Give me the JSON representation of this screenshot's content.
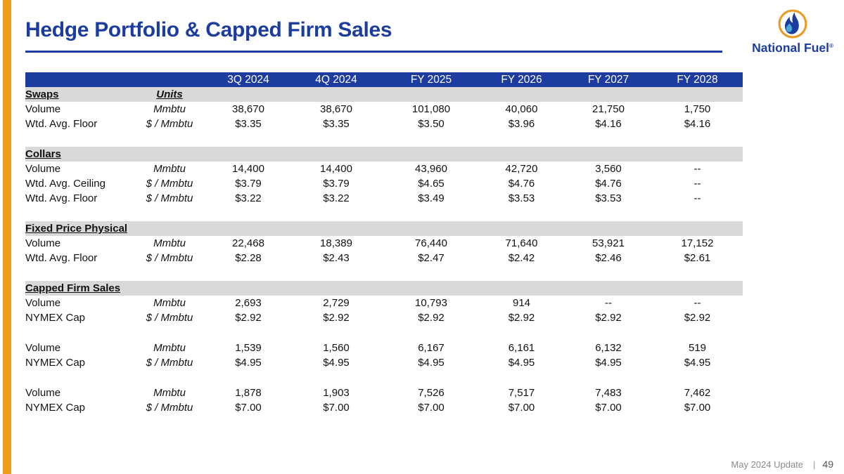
{
  "slide": {
    "title": "Hedge Portfolio & Capped Firm Sales",
    "footer": {
      "update": "May 2024 Update",
      "separator": "|",
      "page": "49"
    },
    "logo": {
      "brand": "National Fuel",
      "registered": "®"
    },
    "colors": {
      "accent_blue": "#1d3ca0",
      "accent_orange": "#ef9e1c",
      "band_gray": "#d9d9d9",
      "muted_text": "#8a8a8a",
      "header_text": "#ffffff"
    }
  },
  "table": {
    "columns": [
      "3Q 2024",
      "4Q 2024",
      "FY 2025",
      "FY 2026",
      "FY 2027",
      "FY 2028"
    ],
    "units_column_header": "Units",
    "sections": [
      {
        "name": "Swaps",
        "groups": [
          [
            {
              "label": "Volume",
              "unit": "Mmbtu",
              "values": [
                "38,670",
                "38,670",
                "101,080",
                "40,060",
                "21,750",
                "1,750"
              ]
            },
            {
              "label": "Wtd. Avg. Floor",
              "unit": "$ / Mmbtu",
              "values": [
                "$3.35",
                "$3.35",
                "$3.50",
                "$3.96",
                "$4.16",
                "$4.16"
              ]
            }
          ]
        ]
      },
      {
        "name": "Collars",
        "groups": [
          [
            {
              "label": "Volume",
              "unit": "Mmbtu",
              "values": [
                "14,400",
                "14,400",
                "43,960",
                "42,720",
                "3,560",
                "--"
              ]
            },
            {
              "label": "Wtd. Avg. Ceiling",
              "unit": "$ / Mmbtu",
              "values": [
                "$3.79",
                "$3.79",
                "$4.65",
                "$4.76",
                "$4.76",
                "--"
              ]
            },
            {
              "label": "Wtd. Avg. Floor",
              "unit": "$ / Mmbtu",
              "values": [
                "$3.22",
                "$3.22",
                "$3.49",
                "$3.53",
                "$3.53",
                "--"
              ]
            }
          ]
        ]
      },
      {
        "name": "Fixed Price Physical",
        "groups": [
          [
            {
              "label": "Volume",
              "unit": "Mmbtu",
              "values": [
                "22,468",
                "18,389",
                "76,440",
                "71,640",
                "53,921",
                "17,152"
              ]
            },
            {
              "label": "Wtd. Avg. Floor",
              "unit": "$ / Mmbtu",
              "values": [
                "$2.28",
                "$2.43",
                "$2.47",
                "$2.42",
                "$2.46",
                "$2.61"
              ]
            }
          ]
        ]
      },
      {
        "name": "Capped Firm Sales",
        "groups": [
          [
            {
              "label": "Volume",
              "unit": "Mmbtu",
              "values": [
                "2,693",
                "2,729",
                "10,793",
                "914",
                "--",
                "--"
              ]
            },
            {
              "label": "NYMEX Cap",
              "unit": "$ / Mmbtu",
              "values": [
                "$2.92",
                "$2.92",
                "$2.92",
                "$2.92",
                "$2.92",
                "$2.92"
              ]
            }
          ],
          [
            {
              "label": "Volume",
              "unit": "Mmbtu",
              "values": [
                "1,539",
                "1,560",
                "6,167",
                "6,161",
                "6,132",
                "519"
              ]
            },
            {
              "label": "NYMEX Cap",
              "unit": "$ / Mmbtu",
              "values": [
                "$4.95",
                "$4.95",
                "$4.95",
                "$4.95",
                "$4.95",
                "$4.95"
              ]
            }
          ],
          [
            {
              "label": "Volume",
              "unit": "Mmbtu",
              "values": [
                "1,878",
                "1,903",
                "7,526",
                "7,517",
                "7,483",
                "7,462"
              ]
            },
            {
              "label": "NYMEX Cap",
              "unit": "$ / Mmbtu",
              "values": [
                "$7.00",
                "$7.00",
                "$7.00",
                "$7.00",
                "$7.00",
                "$7.00"
              ]
            }
          ]
        ]
      }
    ]
  }
}
